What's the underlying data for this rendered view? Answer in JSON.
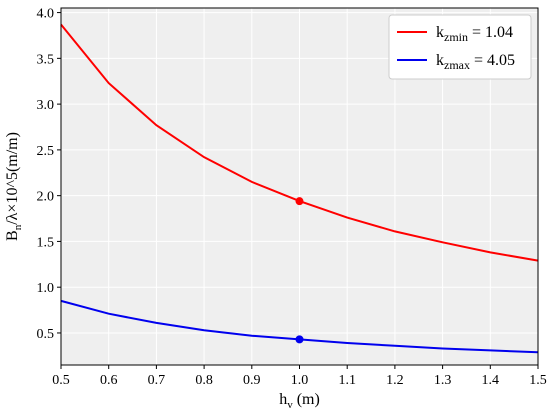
{
  "chart_data": {
    "type": "line",
    "xlabel": {
      "main": "h",
      "sub": "v",
      "rest": " (m)"
    },
    "ylabel": {
      "main": "B",
      "sub": "n",
      "rest": "/λ×10^5(m/m)"
    },
    "xlim": [
      0.5,
      1.5
    ],
    "ylim": [
      0.15,
      4.05
    ],
    "xticks": [
      "0.5",
      "0.6",
      "0.7",
      "0.8",
      "0.9",
      "1.0",
      "1.1",
      "1.2",
      "1.3",
      "1.4",
      "1.5"
    ],
    "yticks": [
      "0.5",
      "1.0",
      "1.5",
      "2.0",
      "2.5",
      "3.0",
      "3.5",
      "4.0"
    ],
    "grid": true,
    "background": "#efefef",
    "legend_position": "top-right",
    "series": [
      {
        "legend_main": "k",
        "legend_sub": "zmin",
        "legend_rest": " = 1.04",
        "color": "#ff0000",
        "x": [
          0.5,
          0.6,
          0.7,
          0.8,
          0.9,
          1.0,
          1.1,
          1.2,
          1.3,
          1.4,
          1.5
        ],
        "y": [
          3.87,
          3.23,
          2.77,
          2.42,
          2.15,
          1.94,
          1.76,
          1.61,
          1.49,
          1.38,
          1.29
        ],
        "marker": {
          "x": 1.0,
          "y": 1.94
        }
      },
      {
        "legend_main": "k",
        "legend_sub": "zmax",
        "legend_rest": " = 4.05",
        "color": "#0000ee",
        "x": [
          0.5,
          0.6,
          0.7,
          0.8,
          0.9,
          1.0,
          1.1,
          1.2,
          1.3,
          1.4,
          1.5
        ],
        "y": [
          0.85,
          0.71,
          0.61,
          0.53,
          0.47,
          0.43,
          0.39,
          0.36,
          0.33,
          0.31,
          0.29
        ],
        "marker": {
          "x": 1.0,
          "y": 0.43
        }
      }
    ]
  }
}
